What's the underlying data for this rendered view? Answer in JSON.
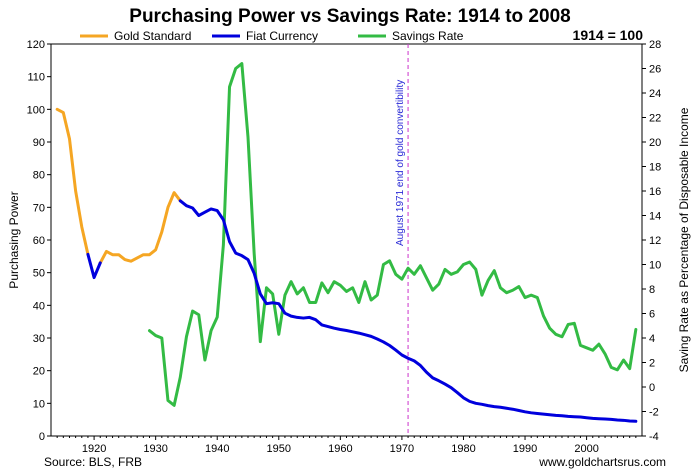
{
  "chart_data": {
    "type": "line",
    "title": "Purchasing Power vs Savings Rate: 1914 to 2008",
    "baseline_note": "1914 = 100",
    "ylabel_left": "Purchasing Power",
    "ylabel_right": "Saving Rate as Percentage of Disposable Income",
    "ylim_left": [
      0,
      120
    ],
    "ylim_right": [
      -4,
      28
    ],
    "xlim": [
      1913,
      2009
    ],
    "x_ticks": [
      "1920",
      "1930",
      "1940",
      "1950",
      "1960",
      "1970",
      "1980",
      "1990",
      "2000"
    ],
    "y_ticks_left": [
      "0",
      "10",
      "20",
      "30",
      "40",
      "50",
      "60",
      "70",
      "80",
      "90",
      "100",
      "110",
      "120"
    ],
    "y_ticks_right": [
      "-4",
      "-2",
      "0",
      "2",
      "4",
      "6",
      "8",
      "10",
      "12",
      "14",
      "16",
      "18",
      "20",
      "22",
      "24",
      "26",
      "28"
    ],
    "grid": false,
    "legend_position": "top",
    "colors": {
      "gold_standard": "#f5a623",
      "fiat_currency": "#0000dd",
      "savings_rate": "#33bb44",
      "annotation": "#cc33cc",
      "annotation_text": "#2b2bd6"
    },
    "annotation": {
      "x": 1971,
      "label": "August 1971 end of gold convertibility"
    },
    "series": [
      {
        "name": "Gold Standard",
        "axis": "left",
        "segments": [
          [
            [
              1914,
              100
            ],
            [
              1915,
              99
            ],
            [
              1916,
              91
            ],
            [
              1917,
              75
            ],
            [
              1918,
              64
            ],
            [
              1919,
              55.6
            ]
          ],
          [
            [
              1921,
              53
            ],
            [
              1922,
              56.5
            ],
            [
              1923,
              55.5
            ],
            [
              1924,
              55.5
            ],
            [
              1925,
              54
            ],
            [
              1926,
              53.5
            ],
            [
              1927,
              54.5
            ],
            [
              1928,
              55.5
            ],
            [
              1929,
              55.5
            ],
            [
              1930,
              57
            ],
            [
              1931,
              62.5
            ],
            [
              1932,
              70
            ],
            [
              1933,
              74.5
            ],
            [
              1934,
              72
            ]
          ]
        ]
      },
      {
        "name": "Fiat Currency",
        "axis": "left",
        "segments": [
          [
            [
              1919,
              55.6
            ],
            [
              1920,
              48.5
            ],
            [
              1921,
              53
            ]
          ],
          [
            [
              1934,
              72
            ],
            [
              1935,
              70.5
            ],
            [
              1936,
              69.8
            ],
            [
              1937,
              67.5
            ],
            [
              1938,
              68.5
            ],
            [
              1939,
              69.5
            ],
            [
              1940,
              69
            ],
            [
              1941,
              66.2
            ],
            [
              1942,
              59.5
            ],
            [
              1943,
              56
            ],
            [
              1944,
              55.2
            ],
            [
              1945,
              54
            ],
            [
              1946,
              49.8
            ],
            [
              1947,
              43.5
            ],
            [
              1948,
              40.5
            ],
            [
              1949,
              40.8
            ],
            [
              1950,
              40.5
            ],
            [
              1951,
              37.6
            ],
            [
              1952,
              36.7
            ],
            [
              1953,
              36.3
            ],
            [
              1954,
              36.1
            ],
            [
              1955,
              36.3
            ],
            [
              1956,
              35.6
            ],
            [
              1957,
              34
            ],
            [
              1958,
              33.5
            ],
            [
              1959,
              33
            ],
            [
              1960,
              32.6
            ],
            [
              1961,
              32.3
            ],
            [
              1962,
              31.9
            ],
            [
              1963,
              31.5
            ],
            [
              1964,
              31
            ],
            [
              1965,
              30.5
            ],
            [
              1966,
              29.7
            ],
            [
              1967,
              28.8
            ],
            [
              1968,
              27.7
            ],
            [
              1969,
              26.3
            ],
            [
              1970,
              24.8
            ],
            [
              1971,
              23.8
            ],
            [
              1972,
              23
            ],
            [
              1973,
              21.6
            ],
            [
              1974,
              19.5
            ],
            [
              1975,
              17.8
            ],
            [
              1976,
              16.9
            ],
            [
              1977,
              15.9
            ],
            [
              1978,
              14.8
            ],
            [
              1979,
              13.3
            ],
            [
              1980,
              11.7
            ],
            [
              1981,
              10.6
            ],
            [
              1982,
              10
            ],
            [
              1983,
              9.7
            ],
            [
              1984,
              9.3
            ],
            [
              1985,
              9
            ],
            [
              1986,
              8.8
            ],
            [
              1987,
              8.5
            ],
            [
              1988,
              8.2
            ],
            [
              1989,
              7.8
            ],
            [
              1990,
              7.4
            ],
            [
              1991,
              7.1
            ],
            [
              1992,
              6.9
            ],
            [
              1993,
              6.7
            ],
            [
              1994,
              6.5
            ],
            [
              1995,
              6.3
            ],
            [
              1996,
              6.2
            ],
            [
              1997,
              6
            ],
            [
              1998,
              5.9
            ],
            [
              1999,
              5.8
            ],
            [
              2000,
              5.6
            ],
            [
              2001,
              5.4
            ],
            [
              2002,
              5.3
            ],
            [
              2003,
              5.2
            ],
            [
              2004,
              5.1
            ],
            [
              2005,
              4.9
            ],
            [
              2006,
              4.8
            ],
            [
              2007,
              4.6
            ],
            [
              2008,
              4.5
            ]
          ]
        ]
      },
      {
        "name": "Savings Rate",
        "axis": "right",
        "segments": [
          [
            [
              1929,
              4.6
            ],
            [
              1930,
              4.2
            ],
            [
              1931,
              4
            ],
            [
              1932,
              -1.1
            ],
            [
              1933,
              -1.5
            ],
            [
              1934,
              0.8
            ],
            [
              1935,
              4.1
            ],
            [
              1936,
              6.2
            ],
            [
              1937,
              5.9
            ],
            [
              1938,
              2.2
            ],
            [
              1939,
              4.6
            ],
            [
              1940,
              5.7
            ],
            [
              1941,
              11.6
            ],
            [
              1942,
              24.5
            ],
            [
              1943,
              26
            ],
            [
              1944,
              26.4
            ],
            [
              1945,
              20.4
            ],
            [
              1946,
              10.9
            ],
            [
              1947,
              3.7
            ],
            [
              1948,
              8.1
            ],
            [
              1949,
              7.6
            ],
            [
              1950,
              4.3
            ],
            [
              1951,
              7.5
            ],
            [
              1952,
              8.6
            ],
            [
              1953,
              7.6
            ],
            [
              1954,
              8.1
            ],
            [
              1955,
              6.9
            ],
            [
              1956,
              6.9
            ],
            [
              1957,
              8.5
            ],
            [
              1958,
              7.7
            ],
            [
              1959,
              8.6
            ],
            [
              1960,
              8.3
            ],
            [
              1961,
              7.8
            ],
            [
              1962,
              8.1
            ],
            [
              1963,
              6.9
            ],
            [
              1964,
              8.6
            ],
            [
              1965,
              7.1
            ],
            [
              1966,
              7.5
            ],
            [
              1967,
              10
            ],
            [
              1968,
              10.3
            ],
            [
              1969,
              9.2
            ],
            [
              1970,
              8.8
            ],
            [
              1971,
              9.7
            ],
            [
              1972,
              9.2
            ],
            [
              1973,
              9.9
            ],
            [
              1974,
              8.9
            ],
            [
              1975,
              7.9
            ],
            [
              1976,
              8.4
            ],
            [
              1977,
              9.6
            ],
            [
              1978,
              9.2
            ],
            [
              1979,
              9.4
            ],
            [
              1980,
              10
            ],
            [
              1981,
              10.2
            ],
            [
              1982,
              9.6
            ],
            [
              1983,
              7.5
            ],
            [
              1984,
              8.7
            ],
            [
              1985,
              9.5
            ],
            [
              1986,
              8.1
            ],
            [
              1987,
              7.7
            ],
            [
              1988,
              7.9
            ],
            [
              1989,
              8.2
            ],
            [
              1990,
              7.3
            ],
            [
              1991,
              7.5
            ],
            [
              1992,
              7.3
            ],
            [
              1993,
              5.8
            ],
            [
              1994,
              4.8
            ],
            [
              1995,
              4.3
            ],
            [
              1996,
              4.1
            ],
            [
              1997,
              5.1
            ],
            [
              1998,
              5.2
            ],
            [
              1999,
              3.4
            ],
            [
              2000,
              3.2
            ],
            [
              2001,
              3
            ],
            [
              2002,
              3.5
            ],
            [
              2003,
              2.7
            ],
            [
              2004,
              1.6
            ],
            [
              2005,
              1.4
            ],
            [
              2006,
              2.2
            ],
            [
              2007,
              1.5
            ],
            [
              2008,
              4.7
            ]
          ]
        ]
      }
    ],
    "source": "Source: BLS, FRB",
    "watermark": "www.goldchartsrus.com"
  }
}
